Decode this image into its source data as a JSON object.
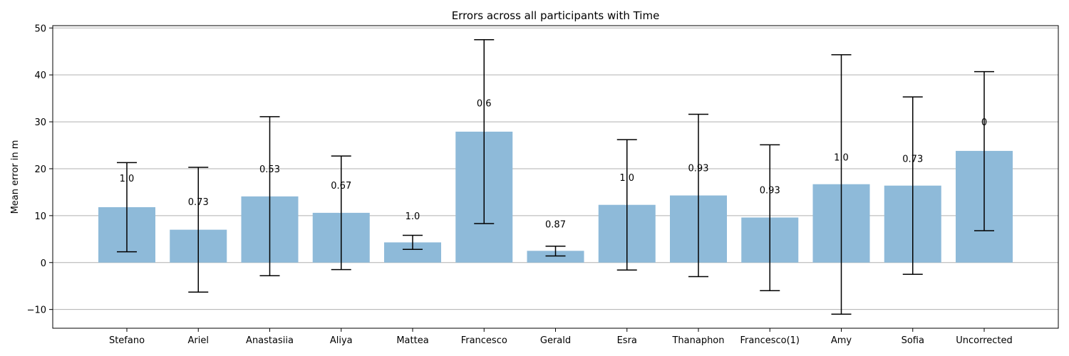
{
  "chart_data": {
    "type": "bar",
    "title": "Errors across all participants with Time",
    "xlabel": "",
    "ylabel": "Mean error in m",
    "ylim": [
      -14,
      50.5
    ],
    "yticks": [
      -10,
      0,
      10,
      20,
      30,
      40,
      50
    ],
    "ytick_labels": [
      "−10",
      "0",
      "10",
      "20",
      "30",
      "40",
      "50"
    ],
    "grid": "horizontal",
    "bar_color": "#8ebad9",
    "categories": [
      "Stefano",
      "Ariel",
      "Anastasiia",
      "Aliya",
      "Mattea",
      "Francesco",
      "Gerald",
      "Esra",
      "Thanaphon",
      "Francesco(1)",
      "Amy",
      "Sofia",
      "Uncorrected"
    ],
    "values": [
      11.8,
      7.0,
      14.1,
      10.6,
      4.3,
      27.9,
      2.5,
      12.3,
      14.3,
      9.6,
      16.7,
      16.4,
      23.8
    ],
    "error_low": [
      2.3,
      -6.3,
      -2.8,
      -1.5,
      2.8,
      8.3,
      1.4,
      -1.6,
      -3.0,
      -6.0,
      -11.0,
      -2.5,
      6.8
    ],
    "error_high": [
      21.3,
      20.3,
      31.1,
      22.7,
      5.8,
      47.5,
      3.5,
      26.2,
      31.6,
      25.1,
      44.3,
      35.3,
      40.7
    ],
    "bar_labels": [
      "1.0",
      "0.73",
      "0.53",
      "0.67",
      "1.0",
      "0.6",
      "0.87",
      "1.0",
      "0.93",
      "0.93",
      "1.0",
      "0.73",
      "0"
    ],
    "bar_label_y": [
      18.0,
      13.0,
      20.0,
      16.5,
      10.0,
      34.0,
      8.2,
      18.2,
      20.2,
      15.5,
      22.5,
      22.2,
      30.0
    ]
  }
}
